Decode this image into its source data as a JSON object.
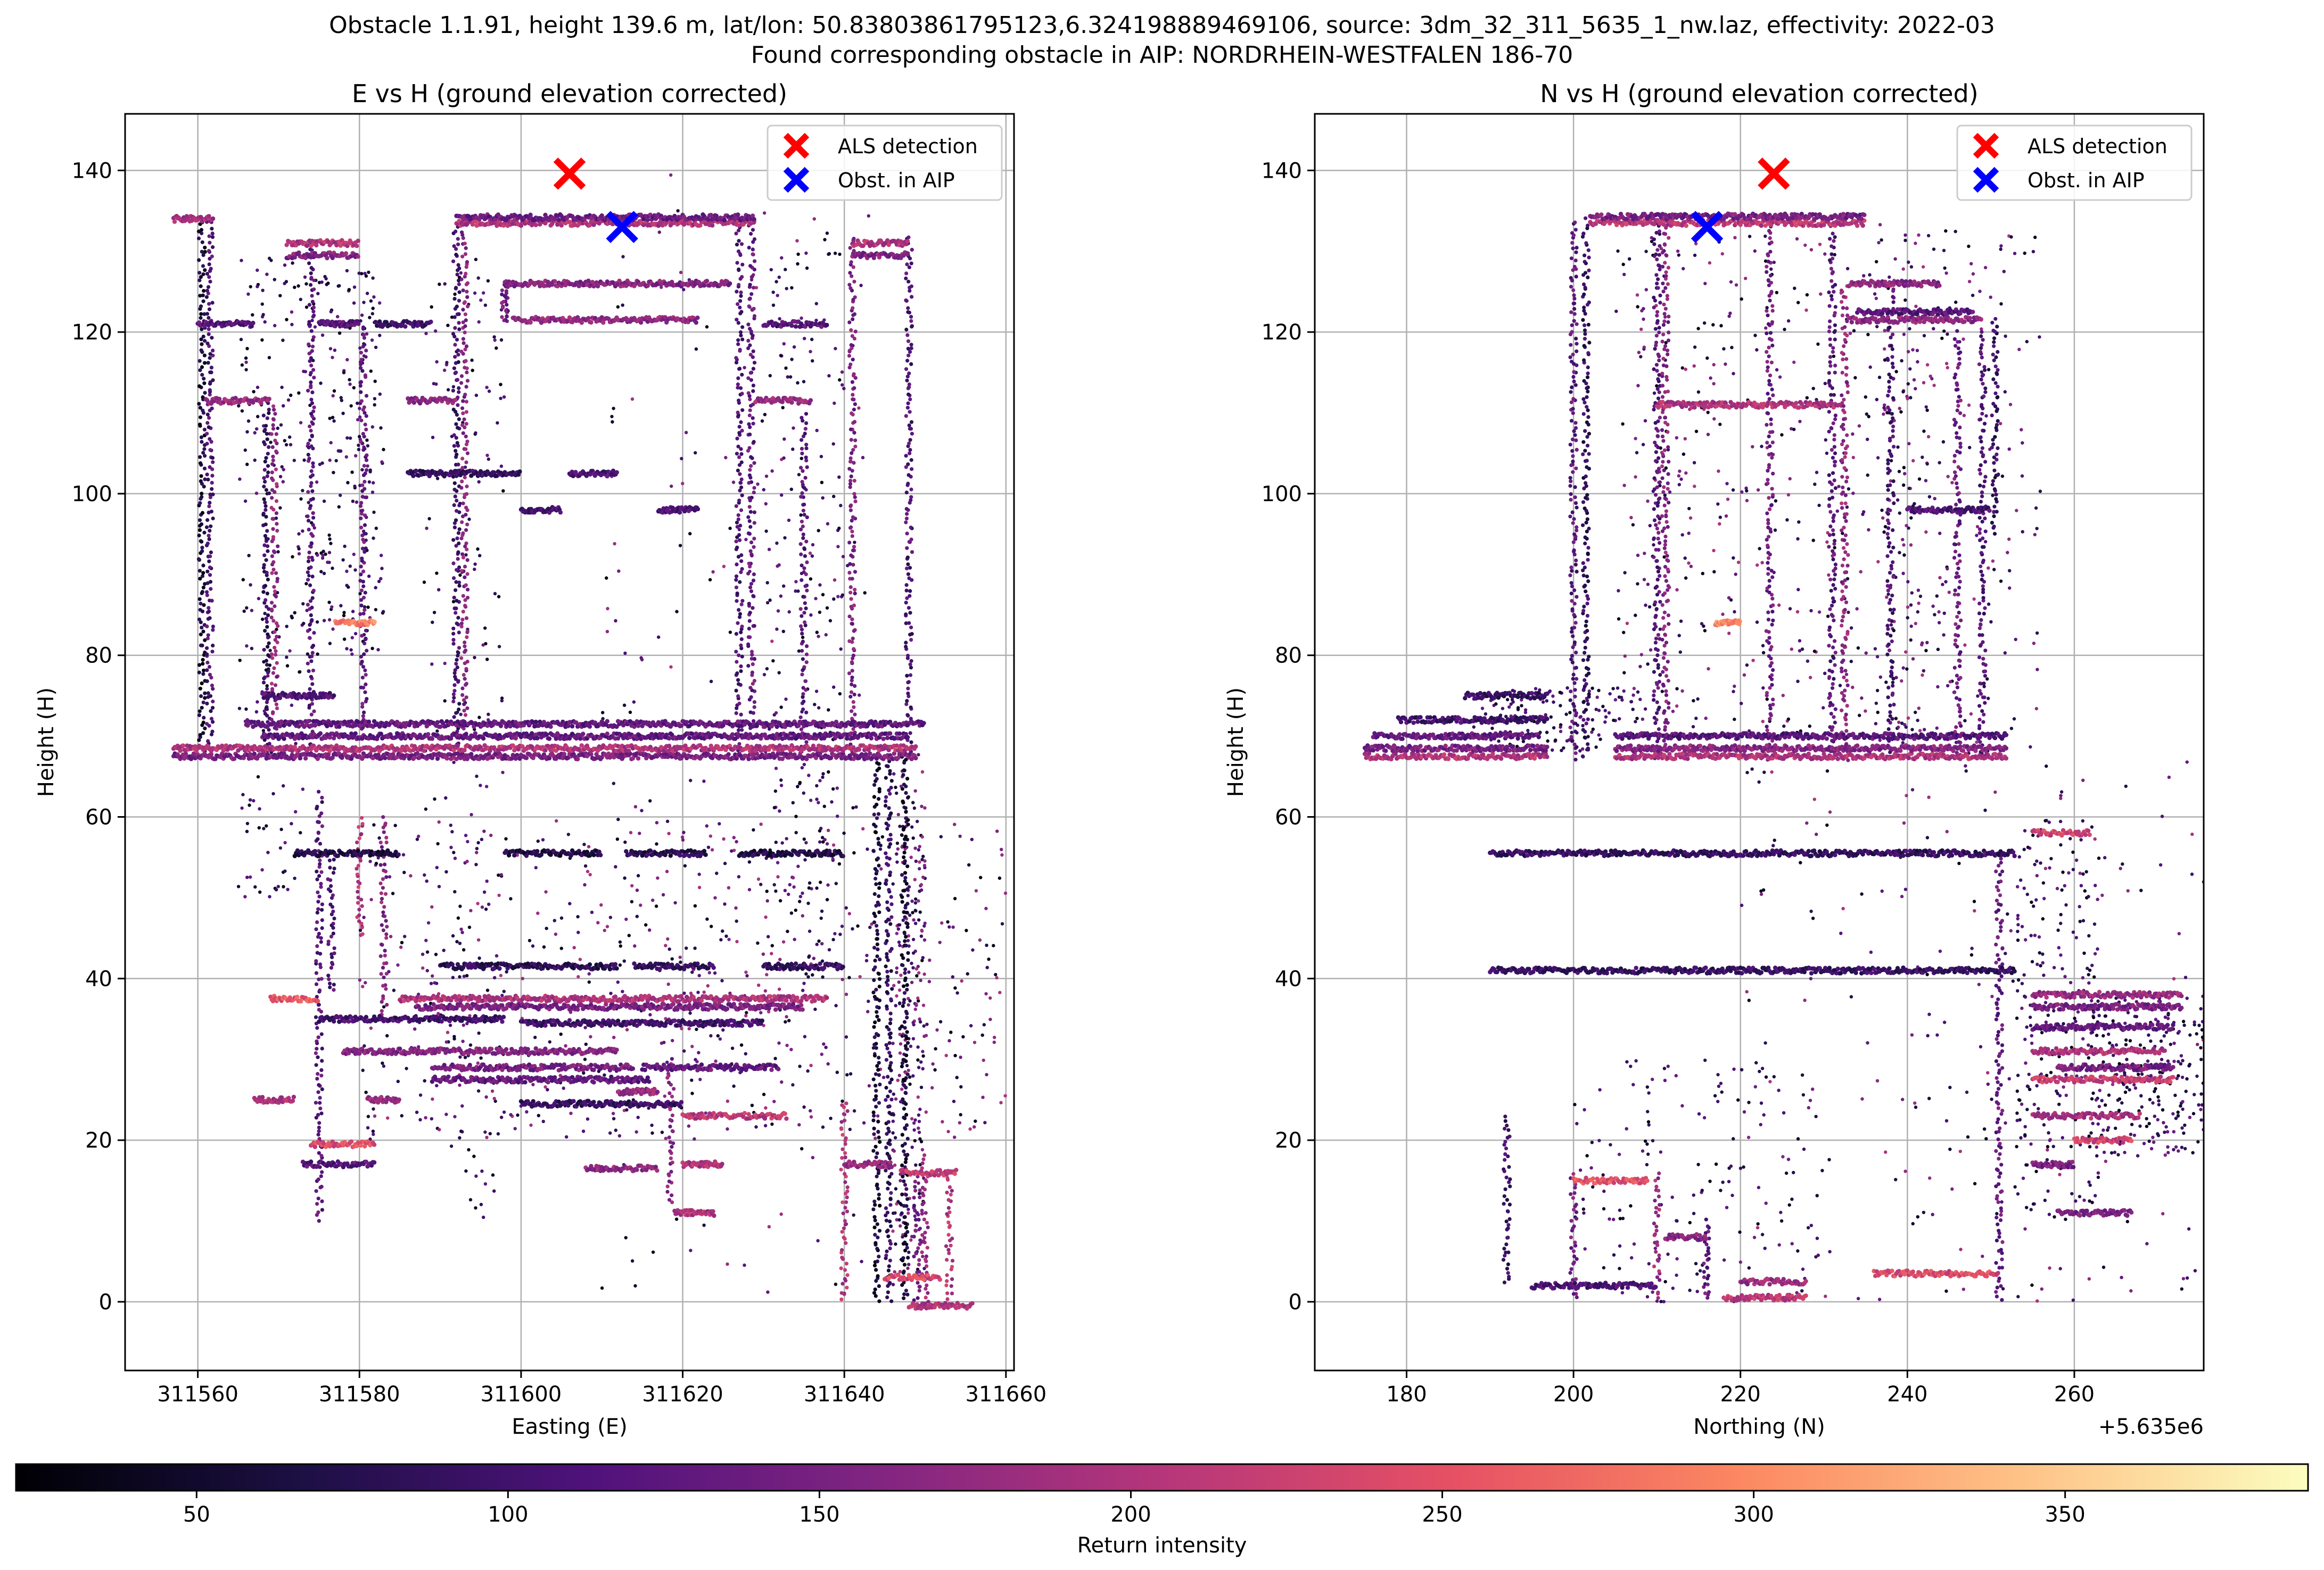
{
  "figure": {
    "suptitle_line1": "Obstacle 1.1.91, height 139.6 m, lat/lon: 50.83803861795123,6.324198889469106, source: 3dm_32_311_5635_1_nw.laz, effectivity: 2022-03",
    "suptitle_line2": "Found corresponding obstacle in AIP: NORDRHEIN-WESTFALEN 186-70"
  },
  "chart_data": [
    {
      "type": "scatter",
      "title": "E vs H (ground elevation corrected)",
      "xlabel": "Easting (E)",
      "ylabel": "Height (H)",
      "xlim": [
        311551,
        311661
      ],
      "ylim": [
        -8.5,
        147
      ],
      "xticks": [
        311560,
        311580,
        311600,
        311620,
        311640,
        311660
      ],
      "xtick_labels": [
        "311560",
        "311580",
        "311600",
        "311620",
        "311640",
        "311660"
      ],
      "yticks": [
        0,
        20,
        40,
        60,
        80,
        100,
        120,
        140
      ],
      "ytick_labels": [
        "0",
        "20",
        "40",
        "60",
        "80",
        "100",
        "120",
        "140"
      ],
      "grid": true,
      "legend_placement": "top-right",
      "markers": [
        {
          "name": "ALS detection",
          "x": 311606,
          "y": 139.6,
          "color": "#ff0000"
        },
        {
          "name": "Obst. in AIP",
          "x": 311612.5,
          "y": 133,
          "color": "#0000ff"
        }
      ],
      "point_cloud": {
        "horizontal_segments": [
          [
            311557,
            311649,
            67.5,
            150
          ],
          [
            311557,
            311649,
            68.5,
            200
          ],
          [
            311568,
            311648,
            70,
            130
          ],
          [
            311592,
            311629,
            133.5,
            200
          ],
          [
            311592,
            311629,
            134.2,
            140
          ],
          [
            311598,
            311626,
            126,
            160
          ],
          [
            311599,
            311622,
            121.5,
            170
          ],
          [
            311560,
            311567,
            121,
            120
          ],
          [
            311575,
            311580,
            121,
            120
          ],
          [
            311582,
            311589,
            121,
            90
          ],
          [
            311630,
            311638,
            121,
            120
          ],
          [
            311561,
            311569,
            111.5,
            180
          ],
          [
            311586,
            311592,
            111.5,
            170
          ],
          [
            311629,
            311636,
            111.5,
            180
          ],
          [
            311557,
            311562,
            134,
            190
          ],
          [
            311571,
            311580,
            131,
            200
          ],
          [
            311571,
            311580,
            129.5,
            160
          ],
          [
            311641,
            311648,
            131,
            200
          ],
          [
            311641,
            311648,
            129.5,
            160
          ],
          [
            311568,
            311577,
            75,
            110
          ],
          [
            311566,
            311650,
            71.5,
            130
          ],
          [
            311577,
            311582,
            84,
            290
          ],
          [
            311585,
            311638,
            37.5,
            200
          ],
          [
            311587,
            311635,
            36.5,
            150
          ],
          [
            311575,
            311598,
            35,
            100
          ],
          [
            311600,
            311630,
            34.5,
            100
          ],
          [
            311578,
            311612,
            31,
            160
          ],
          [
            311589,
            311614,
            29,
            150
          ],
          [
            311615,
            311632,
            29,
            130
          ],
          [
            311589,
            311616,
            27.5,
            130
          ],
          [
            311620,
            311633,
            23,
            210
          ],
          [
            311600,
            311620,
            24.5,
            90
          ],
          [
            311612,
            311617,
            26,
            180
          ],
          [
            311572,
            311585,
            55.5,
            70
          ],
          [
            311598,
            311610,
            55.5,
            70
          ],
          [
            311613,
            311623,
            55.5,
            80
          ],
          [
            311627,
            311640,
            55.5,
            70
          ],
          [
            311590,
            311612,
            41.5,
            80
          ],
          [
            311614,
            311624,
            41.5,
            90
          ],
          [
            311630,
            311640,
            41.5,
            90
          ],
          [
            311586,
            311600,
            102.5,
            90
          ],
          [
            311606,
            311612,
            102.5,
            110
          ],
          [
            311600,
            311605,
            98,
            100
          ],
          [
            311617,
            311622,
            98,
            110
          ],
          [
            311573,
            311582,
            17,
            120
          ],
          [
            311620,
            311625,
            17,
            200
          ],
          [
            311640,
            311646,
            17,
            180
          ],
          [
            311647,
            311654,
            16,
            220
          ],
          [
            311645,
            311652,
            3,
            240
          ],
          [
            311648,
            311656,
            -0.5,
            200
          ],
          [
            311608,
            311617,
            16.5,
            170
          ],
          [
            311619,
            311624,
            11,
            200
          ],
          [
            311574,
            311582,
            19.5,
            240
          ],
          [
            311567,
            311572,
            25,
            200
          ],
          [
            311569,
            311575,
            37.5,
            250
          ],
          [
            311581,
            311585,
            25,
            180
          ]
        ],
        "vertical_segments": [
          [
            311560.5,
            68,
            134,
            60
          ],
          [
            311561.5,
            68,
            134,
            110
          ],
          [
            311568.5,
            68,
            112,
            90
          ],
          [
            311569.5,
            70,
            111,
            170
          ],
          [
            311592,
            68,
            134,
            100
          ],
          [
            311593,
            70,
            134,
            160
          ],
          [
            311627,
            68,
            134,
            110
          ],
          [
            311628.5,
            70,
            134,
            130
          ],
          [
            311641,
            68,
            132,
            150
          ],
          [
            311648,
            68,
            132,
            110
          ],
          [
            311574,
            68,
            131,
            120
          ],
          [
            311580.5,
            70,
            121,
            130
          ],
          [
            311635,
            68,
            110,
            120
          ],
          [
            311598,
            121,
            126,
            140
          ],
          [
            311644,
            0,
            68,
            60
          ],
          [
            311645.5,
            0,
            68,
            90
          ],
          [
            311647.5,
            0,
            68,
            60
          ],
          [
            311575,
            10,
            63,
            120
          ],
          [
            311576.5,
            38,
            55,
            110
          ],
          [
            311580,
            45,
            60,
            200
          ],
          [
            311583,
            35,
            60,
            160
          ],
          [
            311618.5,
            12,
            30,
            160
          ],
          [
            311640,
            0,
            25,
            200
          ],
          [
            311649,
            0,
            16,
            140
          ],
          [
            311653,
            0,
            16,
            200
          ],
          [
            311650,
            0,
            18,
            180
          ]
        ],
        "blobs": [
          [
            311646,
            2,
            68,
            4,
            80,
            420
          ],
          [
            311610,
            0,
            140,
            34,
            60,
            380
          ],
          [
            311565,
            50,
            130,
            8,
            60,
            160
          ],
          [
            311573,
            80,
            128,
            10,
            80,
            160
          ],
          [
            311588,
            10,
            130,
            10,
            60,
            140
          ],
          [
            311630,
            40,
            130,
            10,
            70,
            160
          ],
          [
            311580,
            20,
            60,
            40,
            100,
            280
          ],
          [
            311620,
            20,
            60,
            40,
            100,
            260
          ]
        ]
      }
    },
    {
      "type": "scatter",
      "title": "N vs H (ground elevation corrected)",
      "xlabel": "Northing (N)",
      "x_offset_label": "+5.635e6",
      "ylabel": "Height (H)",
      "xlim": [
        169,
        275.5
      ],
      "ylim": [
        -8.5,
        147
      ],
      "xticks": [
        180,
        200,
        220,
        240,
        260
      ],
      "xtick_labels": [
        "180",
        "200",
        "220",
        "240",
        "260"
      ],
      "yticks": [
        0,
        20,
        40,
        60,
        80,
        100,
        120,
        140
      ],
      "ytick_labels": [
        "0",
        "20",
        "40",
        "60",
        "80",
        "100",
        "120",
        "140"
      ],
      "grid": true,
      "legend_placement": "top-right",
      "markers": [
        {
          "name": "ALS detection",
          "x": 224,
          "y": 139.6,
          "color": "#ff0000"
        },
        {
          "name": "Obst. in AIP",
          "x": 216,
          "y": 133,
          "color": "#0000ff"
        }
      ],
      "point_cloud": {
        "horizontal_segments": [
          [
            175,
            197,
            67.5,
            200
          ],
          [
            175,
            197,
            68.5,
            150
          ],
          [
            176,
            196,
            70,
            130
          ],
          [
            179,
            197,
            72,
            100
          ],
          [
            187,
            197,
            75,
            90
          ],
          [
            205,
            252,
            67.5,
            200
          ],
          [
            205,
            252,
            68.5,
            160
          ],
          [
            205,
            252,
            70,
            120
          ],
          [
            202,
            235,
            133.5,
            210
          ],
          [
            202,
            235,
            134.3,
            150
          ],
          [
            210,
            232,
            111,
            200
          ],
          [
            233,
            244,
            126,
            170
          ],
          [
            233,
            249,
            121.5,
            170
          ],
          [
            234,
            248,
            122.5,
            120
          ],
          [
            240,
            250,
            98,
            110
          ],
          [
            217,
            220,
            84,
            300
          ],
          [
            190,
            253,
            55.5,
            90
          ],
          [
            190,
            253,
            41,
            90
          ],
          [
            255,
            273,
            38,
            180
          ],
          [
            255,
            273,
            36.5,
            150
          ],
          [
            255,
            272,
            34,
            130
          ],
          [
            255,
            271,
            31,
            200
          ],
          [
            258,
            272,
            29,
            150
          ],
          [
            255,
            272,
            27.5,
            220
          ],
          [
            255,
            268,
            23,
            190
          ],
          [
            255,
            260,
            17,
            150
          ],
          [
            258,
            267,
            11,
            150
          ],
          [
            200,
            209,
            15,
            250
          ],
          [
            211,
            216,
            8,
            160
          ],
          [
            220,
            228,
            2.5,
            180
          ],
          [
            236,
            251,
            3.5,
            240
          ],
          [
            218,
            228,
            0.5,
            210
          ],
          [
            195,
            210,
            2,
            110
          ],
          [
            255,
            262,
            58,
            230
          ],
          [
            260,
            267,
            20,
            230
          ]
        ],
        "vertical_segments": [
          [
            200,
            67,
            134,
            120
          ],
          [
            201.5,
            67,
            134,
            90
          ],
          [
            210,
            67,
            134,
            120
          ],
          [
            211,
            67,
            134,
            160
          ],
          [
            223.5,
            67,
            134,
            140
          ],
          [
            231,
            67,
            134,
            120
          ],
          [
            232.5,
            67,
            126,
            170
          ],
          [
            238,
            67,
            126,
            110
          ],
          [
            246,
            67,
            120,
            140
          ],
          [
            249,
            67,
            120,
            110
          ],
          [
            250.5,
            95,
            122,
            90
          ],
          [
            200,
            0,
            16,
            150
          ],
          [
            210,
            0,
            16,
            180
          ],
          [
            216,
            0,
            10,
            130
          ],
          [
            251,
            0,
            55,
            130
          ],
          [
            192,
            2,
            23,
            90
          ]
        ],
        "blobs": [
          [
            205,
            70,
            134,
            38,
            150,
            380
          ],
          [
            236,
            67,
            134,
            20,
            70,
            220
          ],
          [
            188,
            68,
            76,
            20,
            50,
            140
          ],
          [
            220,
            0,
            67,
            60,
            80,
            520
          ],
          [
            253,
            10,
            60,
            10,
            70,
            160
          ],
          [
            262,
            18,
            38,
            18,
            100,
            180
          ],
          [
            200,
            0,
            30,
            30,
            50,
            120
          ]
        ]
      }
    }
  ],
  "colorbar": {
    "label": "Return intensity",
    "range": [
      21,
      389
    ],
    "ticks": [
      50,
      100,
      150,
      200,
      250,
      300,
      350
    ],
    "tick_labels": [
      "50",
      "100",
      "150",
      "200",
      "250",
      "300",
      "350"
    ],
    "colormap": [
      "#000004",
      "#1c1044",
      "#4f127b",
      "#812581",
      "#b5367a",
      "#e55064",
      "#fb8761",
      "#fec287",
      "#fcfdbf"
    ]
  }
}
